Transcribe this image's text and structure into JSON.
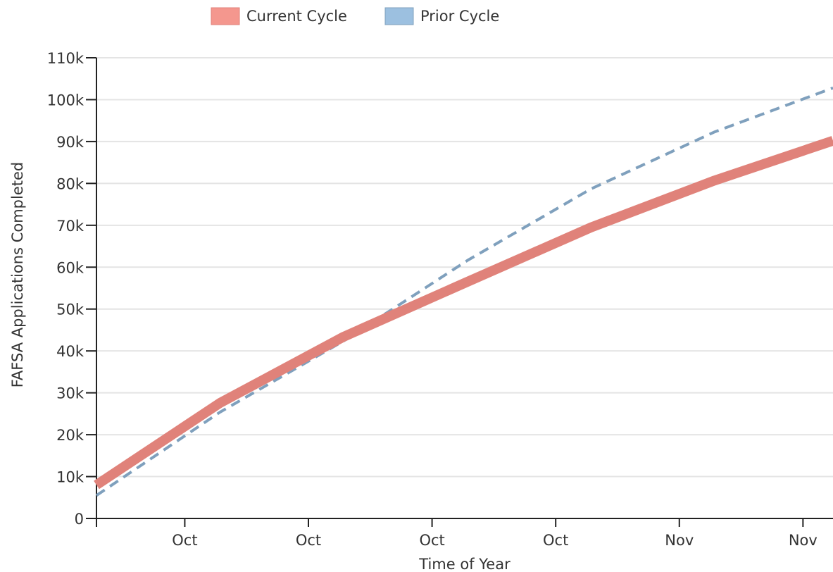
{
  "chart_data": {
    "type": "line",
    "x_label": "Time of Year",
    "y_label": "FAFSA Applications Completed",
    "x": [
      0,
      7,
      14,
      21,
      28,
      35,
      41.7
    ],
    "series": [
      {
        "name": "Current Cycle",
        "color": "#e0827a",
        "legend_color": "#f4978e",
        "style": "solid",
        "values": [
          8000,
          27600,
          43400,
          56500,
          69500,
          80700,
          90200
        ]
      },
      {
        "name": "Prior Cycle",
        "color": "#7fa0bd",
        "legend_color": "#9cc0e0",
        "style": "dashed",
        "values": [
          5500,
          25400,
          42400,
          61600,
          78700,
          92300,
          102800
        ]
      }
    ],
    "xlim": [
      0,
      41.7
    ],
    "xticks": [
      {
        "value": 5,
        "label": "Oct"
      },
      {
        "value": 12,
        "label": "Oct"
      },
      {
        "value": 19,
        "label": "Oct"
      },
      {
        "value": 26,
        "label": "Oct"
      },
      {
        "value": 33,
        "label": "Nov"
      },
      {
        "value": 40,
        "label": "Nov"
      }
    ],
    "ylim": [
      0,
      110000
    ],
    "yticks": [
      0,
      {
        "value": 10000,
        "label": "10k"
      },
      {
        "value": 20000,
        "label": "20k"
      },
      {
        "value": 30000,
        "label": "30k"
      },
      {
        "value": 40000,
        "label": "40k"
      },
      {
        "value": 50000,
        "label": "50k"
      },
      {
        "value": 60000,
        "label": "60k"
      },
      {
        "value": 70000,
        "label": "70k"
      },
      {
        "value": 80000,
        "label": "80k"
      },
      {
        "value": 90000,
        "label": "90k"
      },
      {
        "value": 100000,
        "label": "100k"
      },
      {
        "value": 110000,
        "label": "110k"
      }
    ],
    "grid": true,
    "legend": "top"
  }
}
